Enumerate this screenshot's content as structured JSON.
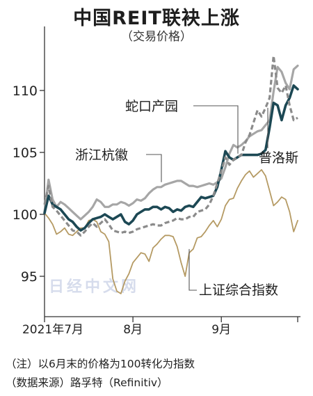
{
  "header": {
    "title": "中国REIT联袂上涨",
    "subtitle": "（交易价格）"
  },
  "notes": {
    "note": "（注）以6月末的价格为100转化为指数",
    "source": "（数据来源）路孚特（Refinitiv）"
  },
  "watermark": "日经中文网",
  "chart_data": {
    "type": "line",
    "title": "中国REIT联袂上涨",
    "subtitle": "（交易价格）",
    "xlabel": "",
    "ylabel": "",
    "x_ticks": [
      "2021年7月",
      "8月",
      "9月"
    ],
    "y_ticks": [
      95,
      100,
      105,
      110
    ],
    "ylim": [
      92,
      114.5
    ],
    "grid": false,
    "x": [
      "07-01",
      "07-02",
      "07-05",
      "07-06",
      "07-07",
      "07-08",
      "07-09",
      "07-12",
      "07-13",
      "07-14",
      "07-15",
      "07-16",
      "07-19",
      "07-20",
      "07-21",
      "07-22",
      "07-23",
      "07-26",
      "07-27",
      "07-28",
      "07-29",
      "07-30",
      "08-02",
      "08-03",
      "08-04",
      "08-05",
      "08-06",
      "08-09",
      "08-10",
      "08-11",
      "08-12",
      "08-13",
      "08-16",
      "08-17",
      "08-18",
      "08-19",
      "08-20",
      "08-23",
      "08-24",
      "08-25",
      "08-26",
      "08-27",
      "08-30",
      "08-31",
      "09-01",
      "09-02",
      "09-03",
      "09-06",
      "09-07",
      "09-08",
      "09-09",
      "09-10",
      "09-13",
      "09-14",
      "09-15",
      "09-16",
      "09-17",
      "09-22",
      "09-23",
      "09-24",
      "09-27",
      "09-28",
      "09-29",
      "09-30"
    ],
    "series": [
      {
        "name": "浙江杭徽",
        "color": "#a6a6a6",
        "values": [
          100.2,
          102.8,
          101.2,
          100.6,
          101.0,
          100.8,
          100.5,
          100.2,
          99.9,
          99.6,
          99.9,
          100.2,
          100.6,
          101.2,
          101.0,
          100.6,
          100.6,
          100.8,
          100.8,
          101.0,
          100.9,
          100.7,
          100.9,
          101.2,
          101.1,
          101.3,
          101.7,
          102.0,
          102.2,
          102.2,
          102.4,
          102.5,
          102.6,
          102.7,
          102.7,
          102.5,
          102.3,
          102.3,
          102.2,
          102.3,
          102.4,
          102.5,
          102.4,
          102.6,
          102.9,
          103.8,
          104.9,
          105.6,
          105.4,
          105.6,
          105.9,
          106.3,
          106.5,
          106.7,
          106.8,
          107.2,
          107.6,
          109.9,
          111.9,
          111.5,
          110.6,
          110.1,
          111.7,
          112.0
        ]
      },
      {
        "name": "蛇口产园",
        "color": "#1c4854",
        "values": [
          100.1,
          101.5,
          100.8,
          100.6,
          100.4,
          100.0,
          99.6,
          99.4,
          99.0,
          98.7,
          98.9,
          99.3,
          99.6,
          99.7,
          99.8,
          100.0,
          99.8,
          99.6,
          99.8,
          100.0,
          99.4,
          99.2,
          99.5,
          100.0,
          100.2,
          100.4,
          100.4,
          100.6,
          100.6,
          100.4,
          100.6,
          100.5,
          100.2,
          100.4,
          100.3,
          100.6,
          100.7,
          100.6,
          101.0,
          101.4,
          101.3,
          101.4,
          101.5,
          102.2,
          103.6,
          105.1,
          104.6,
          104.4,
          104.6,
          104.8,
          104.8,
          104.8,
          104.8,
          104.8,
          104.9,
          105.2,
          107.0,
          109.0,
          108.8,
          107.6,
          108.8,
          109.4,
          110.4,
          110.1
        ]
      },
      {
        "name": "普洛斯",
        "color": "#8b8b8b",
        "dashed": true,
        "values": [
          100.8,
          102.3,
          100.6,
          100.3,
          99.9,
          99.5,
          99.1,
          98.7,
          98.6,
          98.3,
          98.6,
          99.0,
          99.3,
          99.0,
          99.3,
          99.6,
          99.2,
          98.7,
          98.6,
          98.5,
          98.6,
          98.5,
          98.6,
          98.8,
          98.9,
          99.0,
          99.1,
          99.2,
          99.1,
          99.1,
          99.3,
          99.4,
          99.5,
          99.7,
          99.6,
          99.6,
          99.8,
          99.8,
          100.2,
          100.3,
          100.4,
          100.8,
          101.5,
          102.5,
          103.5,
          104.6,
          104.0,
          104.4,
          104.6,
          104.8,
          105.8,
          106.4,
          107.4,
          108.4,
          107.9,
          108.6,
          109.4,
          112.8,
          110.2,
          109.8,
          110.4,
          108.8,
          107.6,
          107.8
        ]
      },
      {
        "name": "上证综合指数",
        "color": "#b59a63",
        "values": [
          100.1,
          99.7,
          99.2,
          98.4,
          98.6,
          98.9,
          98.4,
          98.3,
          98.6,
          98.9,
          98.9,
          99.5,
          99.6,
          99.4,
          98.6,
          98.4,
          97.8,
          94.8,
          93.8,
          93.6,
          94.6,
          95.2,
          96.1,
          96.5,
          96.9,
          96.8,
          96.2,
          97.3,
          97.6,
          98.0,
          98.3,
          98.3,
          98.2,
          97.4,
          96.1,
          95.0,
          96.9,
          97.2,
          98.1,
          98.2,
          98.6,
          99.1,
          99.5,
          99.0,
          99.6,
          100.7,
          101.2,
          101.3,
          102.1,
          102.7,
          103.2,
          103.5,
          103.0,
          103.3,
          103.6,
          103.1,
          101.9,
          100.7,
          101.0,
          101.4,
          101.2,
          100.2,
          98.6,
          99.5
        ]
      }
    ],
    "annotations": [
      "浙江杭徽",
      "蛇口产园",
      "普洛斯",
      "上证综合指数"
    ]
  }
}
